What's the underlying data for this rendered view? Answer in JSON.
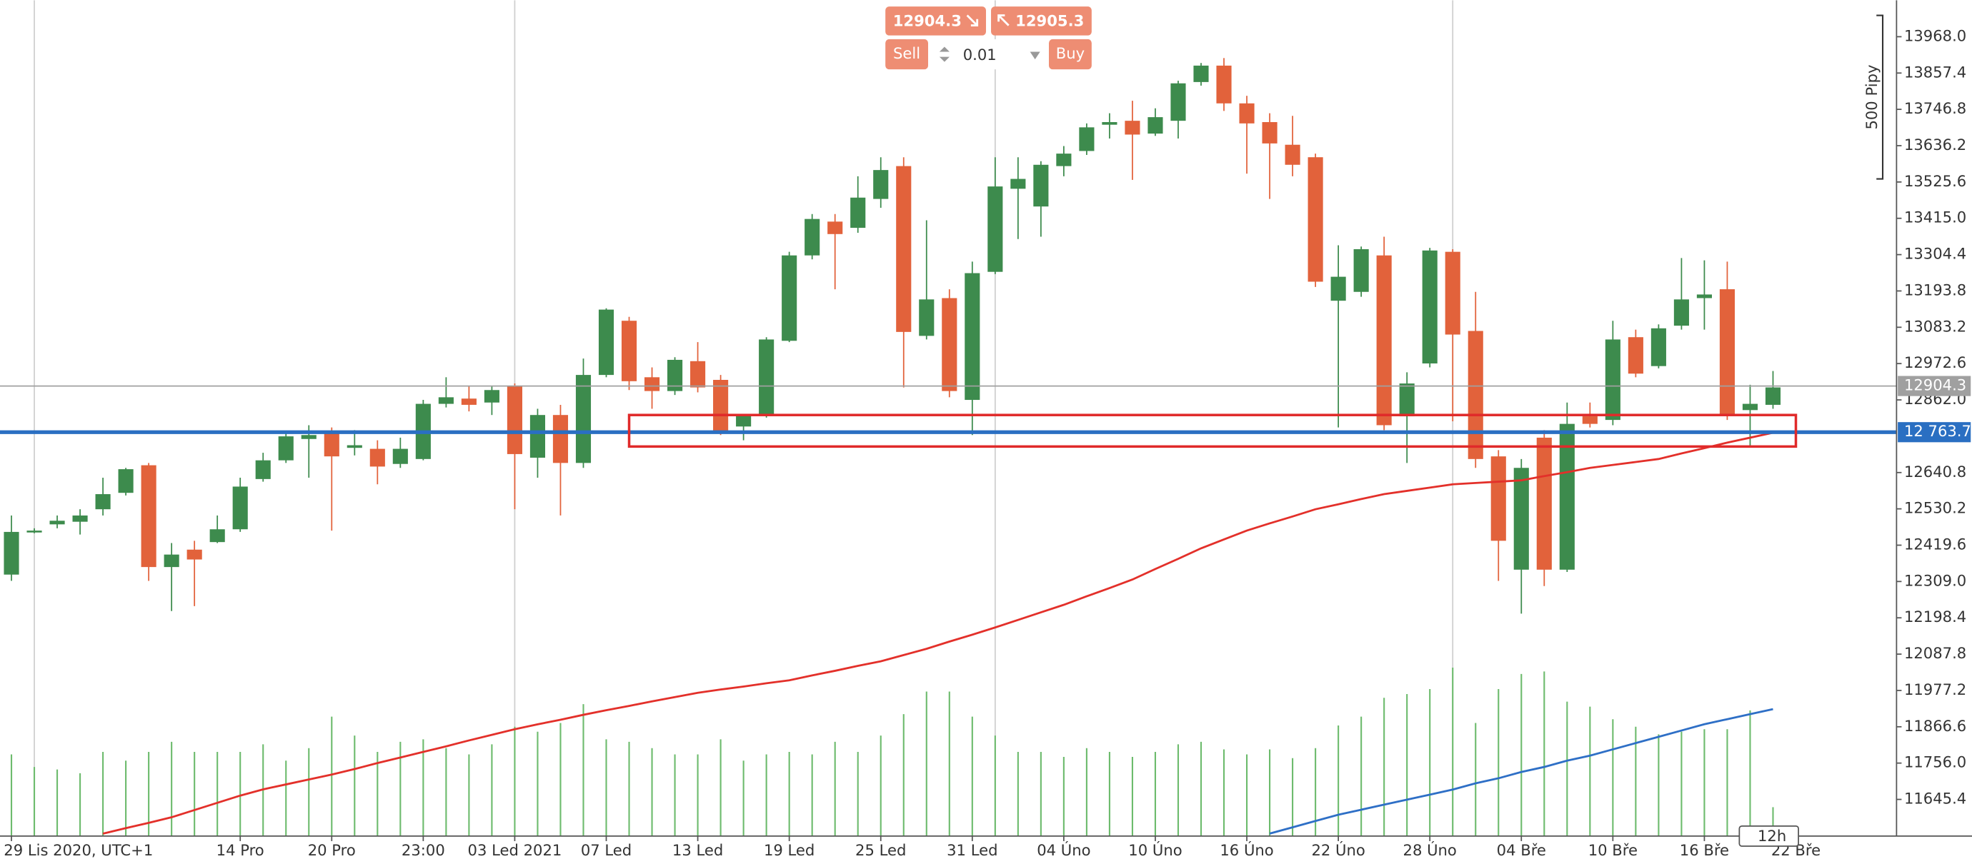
{
  "trade_panel": {
    "sell_price": 12904.3,
    "buy_price": 12905.3,
    "sell_label": "Sell",
    "buy_label": "Buy",
    "volume": 0.01
  },
  "chart_data": {
    "type": "candlestick",
    "xlim": [
      -0.5,
      82.4
    ],
    "ylim": [
      11533.7,
      14079
    ],
    "xticks": [
      {
        "value": 0,
        "label": "29 Lis 2020, UTC+1"
      },
      {
        "value": 10,
        "label": "14 Pro"
      },
      {
        "value": 14,
        "label": "20 Pro"
      },
      {
        "value": 18,
        "label": "23:00"
      },
      {
        "value": 22,
        "label": "03 Led 2021"
      },
      {
        "value": 26,
        "label": "07 Led"
      },
      {
        "value": 30,
        "label": "13 Led"
      },
      {
        "value": 34,
        "label": "19 Led"
      },
      {
        "value": 38,
        "label": "25 Led"
      },
      {
        "value": 42,
        "label": "31 Led"
      },
      {
        "value": 46,
        "label": "04 Úno"
      },
      {
        "value": 50,
        "label": "10 Úno"
      },
      {
        "value": 54,
        "label": "16 Úno"
      },
      {
        "value": 58,
        "label": "22 Úno"
      },
      {
        "value": 62,
        "label": "28 Úno"
      },
      {
        "value": 66,
        "label": "04 Bře"
      },
      {
        "value": 70,
        "label": "10 Bře"
      },
      {
        "value": 74,
        "label": "16 Bře"
      },
      {
        "value": 78,
        "label": "22 Bře"
      }
    ],
    "xgrid": [
      1,
      22,
      43,
      63
    ],
    "yticks": [
      {
        "value": 13968,
        "label": "13968.0"
      },
      13857.4,
      13746.8,
      13636.2,
      13525.6,
      {
        "value": 13415,
        "label": "13415.0"
      },
      13304.4,
      13193.8,
      13083.2,
      12972.6,
      {
        "value": 12862,
        "label": "12862.0"
      },
      12640.8,
      12530.2,
      12419.6,
      {
        "value": 12309,
        "label": "12309.0"
      },
      12198.4,
      12087.8,
      11977.2,
      11866.6,
      {
        "value": 11756,
        "label": "11756.0"
      },
      11645.4
    ],
    "up_color": "#3d8b4d",
    "down_color": "#e2623b",
    "open": [
      12330,
      12460,
      12483,
      12491,
      12529,
      12579,
      12663,
      12353,
      12406,
      12429,
      12468,
      12621,
      12678,
      12743,
      12759,
      12716,
      12713,
      12667,
      12682,
      12850,
      12866,
      12854,
      12904,
      12686,
      12816,
      12670,
      12938,
      13103,
      12931,
      12889,
      12980,
      12923,
      12781,
      12816,
      13042,
      13302,
      13405,
      13386,
      13474,
      13574,
      13057,
      13172,
      12862,
      13252,
      13505,
      13451,
      13574,
      13620,
      13700,
      13712,
      13673,
      13712,
      13830,
      13880,
      13765,
      13708,
      13639,
      13601,
      13164,
      13191,
      13302,
      12812,
      12973,
      13313,
      13072,
      12690,
      12345,
      12747,
      12345,
      12812,
      12801,
      13053,
      12965,
      13088,
      13172,
      13199,
      12831,
      12847
    ],
    "high": [
      12510,
      12471,
      12510,
      12529,
      12625,
      12655,
      12670,
      12426,
      12433,
      12510,
      12625,
      12701,
      12762,
      12785,
      12778,
      12770,
      12739,
      12747,
      12862,
      12931,
      12904,
      12904,
      12912,
      12835,
      12847,
      12988,
      13141,
      13115,
      12961,
      12992,
      13038,
      12938,
      12816,
      13053,
      13313,
      13428,
      13428,
      13543,
      13601,
      13601,
      13409,
      13199,
      13283,
      13601,
      13601,
      13589,
      13635,
      13704,
      13735,
      13773,
      13750,
      13834,
      13888,
      13903,
      13788,
      13735,
      13727,
      13612,
      13333,
      13329,
      13359,
      12946,
      13325,
      13321,
      13191,
      12709,
      12682,
      12770,
      12854,
      12854,
      13103,
      13076,
      13092,
      13294,
      13287,
      13283,
      12908,
      12950
    ],
    "low": [
      12311,
      12456,
      12471,
      12452,
      12510,
      12571,
      12311,
      12219,
      12234,
      12426,
      12460,
      12613,
      12670,
      12625,
      12464,
      12693,
      12605,
      12655,
      12678,
      12839,
      12827,
      12816,
      12529,
      12625,
      12510,
      12655,
      12931,
      12892,
      12835,
      12877,
      12885,
      12755,
      12739,
      12808,
      13038,
      13290,
      13199,
      13371,
      13447,
      12900,
      13046,
      12870,
      12755,
      13245,
      13352,
      13359,
      13543,
      13608,
      13658,
      13532,
      13666,
      13658,
      13819,
      13742,
      13551,
      13474,
      13543,
      13206,
      12778,
      13176,
      12770,
      12670,
      12961,
      12797,
      12655,
      12311,
      12211,
      12295,
      12338,
      12778,
      12785,
      12931,
      12958,
      13076,
      13076,
      12801,
      12720,
      12835
    ],
    "close": [
      12460,
      12464,
      12494,
      12510,
      12575,
      12651,
      12353,
      12391,
      12376,
      12468,
      12598,
      12678,
      12751,
      12755,
      12690,
      12724,
      12659,
      12713,
      12850,
      12870,
      12847,
      12892,
      12697,
      12816,
      12670,
      12938,
      13137,
      12919,
      12889,
      12984,
      12900,
      12766,
      12816,
      13046,
      13302,
      13413,
      13367,
      13478,
      13562,
      13069,
      13168,
      12889,
      13248,
      13512,
      13535,
      13578,
      13612,
      13692,
      13708,
      13670,
      13723,
      13826,
      13880,
      13765,
      13704,
      13643,
      13578,
      13222,
      13237,
      13321,
      12785,
      12912,
      13317,
      13061,
      12682,
      12433,
      12655,
      12345,
      12789,
      12789,
      13046,
      12942,
      13080,
      13168,
      13183,
      12816,
      12850,
      12900
    ],
    "moving_average": {
      "color": "#e3302a",
      "values": [
        null,
        null,
        null,
        null,
        11541,
        11558,
        11574,
        11591,
        11613,
        11635,
        11657,
        11676,
        11691,
        11706,
        11721,
        11738,
        11756,
        11773,
        11790,
        11807,
        11825,
        11842,
        11859,
        11874,
        11888,
        11903,
        11917,
        11930,
        11944,
        11957,
        11970,
        11980,
        11989,
        11999,
        12008,
        12023,
        12037,
        12052,
        12066,
        12085,
        12104,
        12126,
        12147,
        12169,
        12192,
        12215,
        12238,
        12264,
        12289,
        12315,
        12347,
        12378,
        12410,
        12437,
        12464,
        12486,
        12507,
        12529,
        12544,
        12560,
        12575,
        12585,
        12595,
        12605,
        12609,
        12613,
        12617,
        12630,
        12642,
        12655,
        12664,
        12673,
        12682,
        12699,
        12715,
        12732,
        12747,
        12762
      ]
    },
    "volume": {
      "color": "#6dbb6d",
      "ylim": [
        0,
        665
      ],
      "values": [
        65,
        55,
        53,
        50,
        67,
        60,
        67,
        75,
        67,
        67,
        67,
        73,
        60,
        70,
        95,
        80,
        67,
        75,
        77,
        70,
        65,
        73,
        87,
        83,
        90,
        105,
        77,
        75,
        70,
        65,
        65,
        77,
        60,
        65,
        67,
        65,
        75,
        67,
        80,
        97,
        115,
        115,
        95,
        80,
        67,
        67,
        63,
        70,
        67,
        63,
        67,
        73,
        75,
        69,
        65,
        69,
        62,
        70,
        88,
        95,
        110,
        113,
        117,
        134,
        90,
        117,
        129,
        131,
        107,
        103,
        93,
        87,
        81,
        83,
        85,
        85,
        100,
        23
      ],
      "average": {
        "color": "#2e6fc6",
        "values": [
          null,
          null,
          null,
          null,
          null,
          null,
          null,
          null,
          null,
          null,
          null,
          null,
          null,
          null,
          null,
          null,
          null,
          null,
          null,
          null,
          null,
          null,
          null,
          null,
          null,
          null,
          null,
          null,
          null,
          null,
          null,
          null,
          null,
          null,
          null,
          null,
          null,
          null,
          null,
          null,
          null,
          null,
          null,
          null,
          null,
          null,
          null,
          null,
          null,
          null,
          null,
          null,
          null,
          null,
          null,
          2,
          7,
          12,
          17,
          21,
          25,
          29,
          33,
          37,
          42,
          46,
          51,
          55,
          60,
          64,
          69,
          74,
          79,
          84,
          89,
          93,
          97,
          101
        ]
      }
    },
    "price_lines": [
      {
        "value": 12904.3,
        "color": "#a0a0a0"
      },
      {
        "value": 12763.7,
        "label": "12 763.7",
        "color": "#2a6fc2"
      }
    ],
    "zone": {
      "x": [
        27,
        78
      ],
      "y": [
        12720,
        12816
      ],
      "color": "#e02a2a"
    },
    "pip_bracket": {
      "label": "500 Pipy",
      "y": [
        13535,
        14033
      ]
    },
    "timeframe": "12h"
  }
}
